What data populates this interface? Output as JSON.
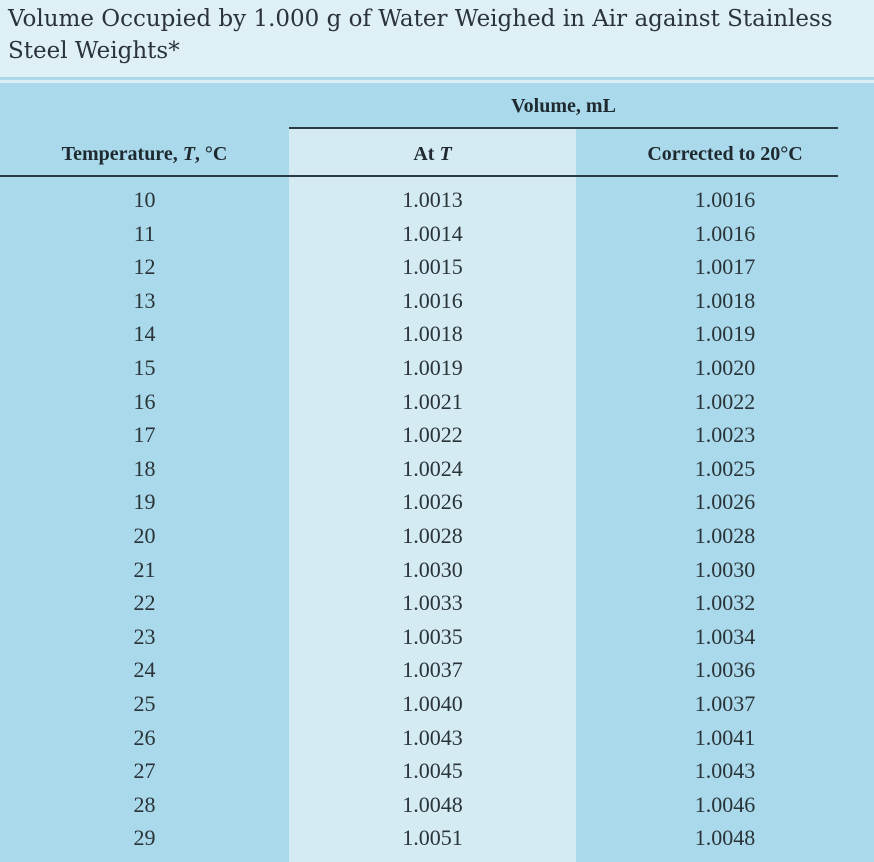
{
  "title": "Volume Occupied by 1.000 g of Water Weighed in Air against Stainless Steel Weights*",
  "headers": {
    "group": "Volume, mL",
    "temperature_prefix": "Temperature, ",
    "temperature_var": "T",
    "temperature_suffix": ", °C",
    "at_prefix": "At ",
    "at_var": "T",
    "corrected": "Corrected to 20°C"
  },
  "rows": [
    {
      "t": "10",
      "at": "1.0013",
      "corr": "1.0016"
    },
    {
      "t": "11",
      "at": "1.0014",
      "corr": "1.0016"
    },
    {
      "t": "12",
      "at": "1.0015",
      "corr": "1.0017"
    },
    {
      "t": "13",
      "at": "1.0016",
      "corr": "1.0018"
    },
    {
      "t": "14",
      "at": "1.0018",
      "corr": "1.0019"
    },
    {
      "t": "15",
      "at": "1.0019",
      "corr": "1.0020"
    },
    {
      "t": "16",
      "at": "1.0021",
      "corr": "1.0022"
    },
    {
      "t": "17",
      "at": "1.0022",
      "corr": "1.0023"
    },
    {
      "t": "18",
      "at": "1.0024",
      "corr": "1.0025"
    },
    {
      "t": "19",
      "at": "1.0026",
      "corr": "1.0026"
    },
    {
      "t": "20",
      "at": "1.0028",
      "corr": "1.0028"
    },
    {
      "t": "21",
      "at": "1.0030",
      "corr": "1.0030"
    },
    {
      "t": "22",
      "at": "1.0033",
      "corr": "1.0032"
    },
    {
      "t": "23",
      "at": "1.0035",
      "corr": "1.0034"
    },
    {
      "t": "24",
      "at": "1.0037",
      "corr": "1.0036"
    },
    {
      "t": "25",
      "at": "1.0040",
      "corr": "1.0037"
    },
    {
      "t": "26",
      "at": "1.0043",
      "corr": "1.0041"
    },
    {
      "t": "27",
      "at": "1.0045",
      "corr": "1.0043"
    },
    {
      "t": "28",
      "at": "1.0048",
      "corr": "1.0046"
    },
    {
      "t": "29",
      "at": "1.0051",
      "corr": "1.0048"
    }
  ],
  "colors": {
    "header_band": "#deeff6",
    "column_blue": "#a9d9ea",
    "column_light": "#d4ebf3",
    "rule": "#2b3a40"
  }
}
